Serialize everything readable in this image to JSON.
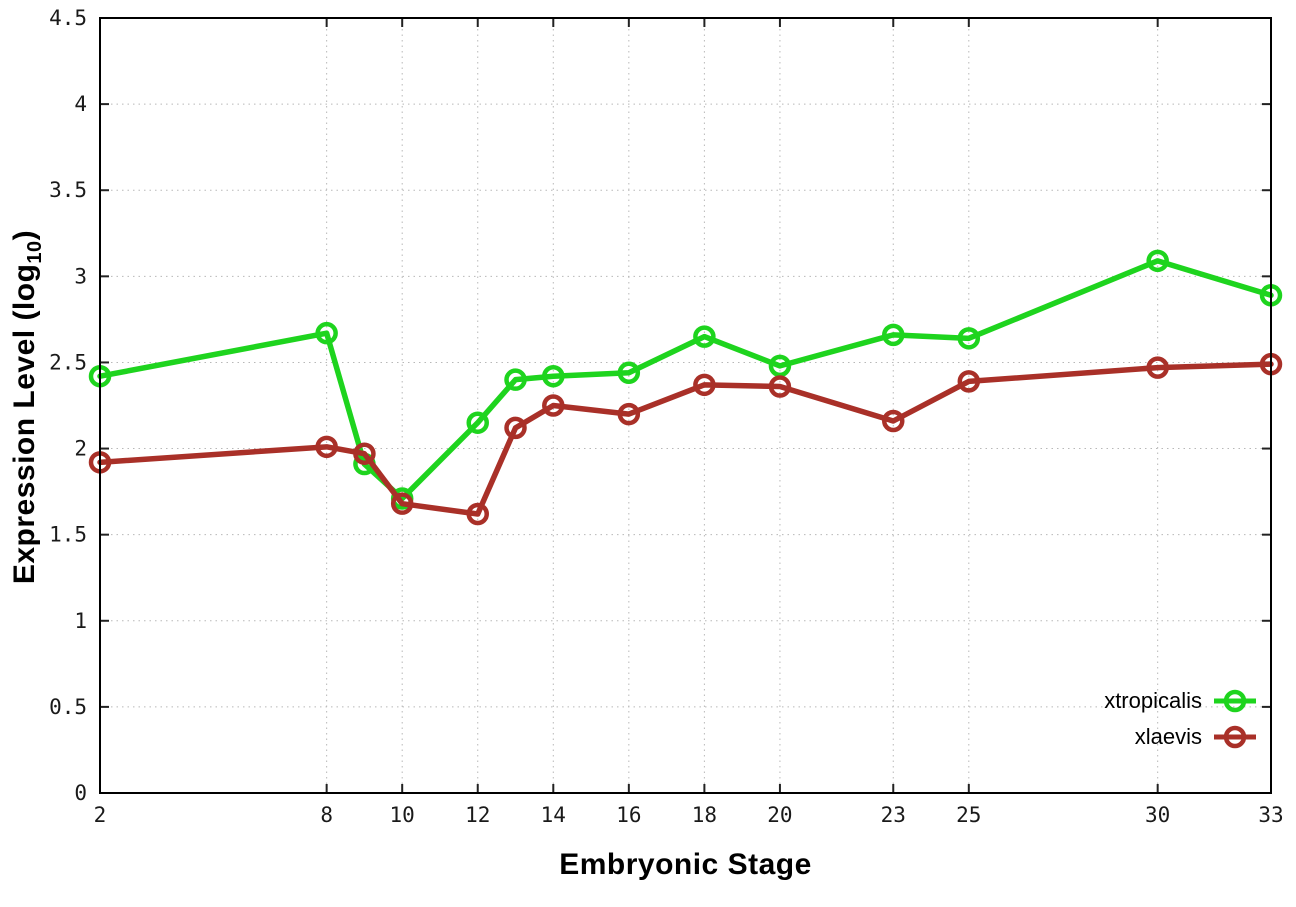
{
  "chart_data": {
    "type": "line",
    "title": "",
    "xlabel": "Embryonic Stage",
    "ylabel": "Expression Level (log10)",
    "ylabel_parts": {
      "prefix": "Expression Level (log",
      "sub": "10",
      "suffix": ")"
    },
    "x": [
      2,
      8,
      9,
      10,
      12,
      13,
      14,
      16,
      18,
      20,
      23,
      25,
      30,
      33
    ],
    "xlim": [
      2,
      33
    ],
    "ylim": [
      0,
      4.5
    ],
    "x_ticks": [
      2,
      8,
      10,
      12,
      14,
      16,
      18,
      20,
      23,
      25,
      30,
      33
    ],
    "y_ticks": [
      0,
      0.5,
      1,
      1.5,
      2,
      2.5,
      3,
      3.5,
      4,
      4.5
    ],
    "grid": "dotted",
    "legend_position": "inside-bottom-right",
    "series": [
      {
        "name": "xtropicalis",
        "color": "#1ed41e",
        "marker": "open-circle",
        "values": [
          2.42,
          2.67,
          1.91,
          1.71,
          2.15,
          2.4,
          2.42,
          2.44,
          2.65,
          2.48,
          2.66,
          2.64,
          3.09,
          2.89
        ]
      },
      {
        "name": "xlaevis",
        "color": "#a93028",
        "marker": "open-circle",
        "values": [
          1.92,
          2.01,
          1.97,
          1.68,
          1.62,
          2.12,
          2.25,
          2.2,
          2.37,
          2.36,
          2.16,
          2.39,
          2.47,
          2.49
        ]
      }
    ]
  },
  "style": {
    "background": "#ffffff",
    "border_color": "#000000",
    "grid_color": "#b8b8b8",
    "tick_color": "#222222",
    "tick_label_color": "#1a1a1a"
  }
}
